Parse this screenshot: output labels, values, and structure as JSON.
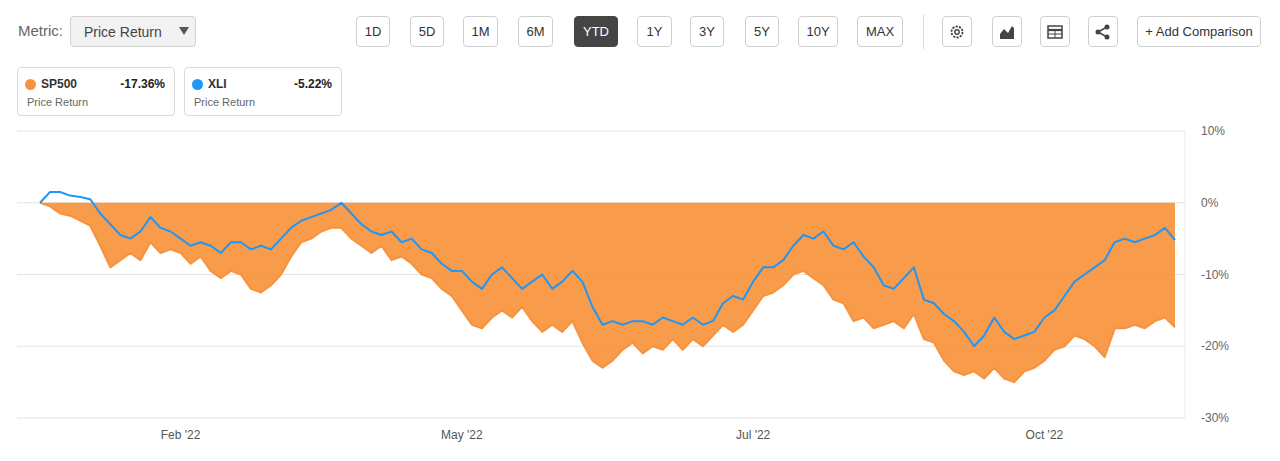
{
  "chart_data": {
    "type": "line",
    "toolbar": {
      "metric_label": "Metric:",
      "metric": "Price Return",
      "ranges": [
        "1D",
        "5D",
        "1M",
        "6M",
        "YTD",
        "1Y",
        "3Y",
        "5Y",
        "10Y",
        "MAX"
      ],
      "active_range": "YTD",
      "add_button": "+ Add Comparison"
    },
    "legend": "top-left",
    "grid": true,
    "categories": [
      null,
      null,
      null,
      null,
      null,
      null,
      null,
      null,
      null,
      null,
      null,
      null,
      null,
      null,
      "Feb '22",
      null,
      null,
      null,
      null,
      null,
      null,
      null,
      null,
      null,
      null,
      null,
      null,
      null,
      null,
      null,
      null,
      null,
      null,
      null,
      null,
      null,
      null,
      null,
      null,
      null,
      null,
      null,
      "May '22",
      null,
      null,
      null,
      null,
      null,
      null,
      null,
      null,
      null,
      null,
      null,
      null,
      null,
      null,
      null,
      null,
      null,
      null,
      null,
      null,
      null,
      null,
      null,
      null,
      null,
      null,
      null,
      null,
      "Jul '22",
      null,
      null,
      null,
      null,
      null,
      null,
      null,
      null,
      null,
      null,
      null,
      null,
      null,
      null,
      null,
      null,
      null,
      null,
      null,
      null,
      null,
      null,
      null,
      null,
      null,
      null,
      null,
      null,
      "Oct '22",
      null,
      null,
      null,
      null,
      null,
      null,
      null,
      null,
      null,
      null,
      null,
      null,
      null
    ],
    "series": [
      {
        "name": "SP500",
        "color": "#f7933c",
        "type": "area",
        "summary": "-17.36%",
        "metric": "Price Return",
        "values": [
          0,
          -0.5,
          -1.5,
          -1.8,
          -2.5,
          -3.2,
          -6,
          -9,
          -8,
          -7,
          -8,
          -5.5,
          -7,
          -6.5,
          -7,
          -8.5,
          -7.5,
          -9.5,
          -10.5,
          -9.5,
          -10,
          -12,
          -12.5,
          -11.5,
          -10,
          -7.5,
          -5.5,
          -5,
          -4,
          -3.5,
          -3.5,
          -5,
          -6,
          -7,
          -6,
          -8,
          -7.5,
          -8.5,
          -10,
          -10.5,
          -12,
          -13,
          -15,
          -17,
          -17.5,
          -16,
          -15,
          -16,
          -14.5,
          -16.5,
          -18,
          -17,
          -18,
          -16.5,
          -19.5,
          -22,
          -23,
          -22,
          -20.5,
          -19.5,
          -21,
          -20,
          -20.5,
          -19,
          -20.5,
          -19,
          -20,
          -18.5,
          -17,
          -18,
          -17,
          -15,
          -13,
          -12.5,
          -11.5,
          -10,
          -9.5,
          -10.5,
          -11.5,
          -13.5,
          -14,
          -16.5,
          -16,
          -17.5,
          -17,
          -16.5,
          -17.5,
          -15.5,
          -19,
          -19.5,
          -22,
          -23.5,
          -24,
          -23.5,
          -24.5,
          -23,
          -24.5,
          -25,
          -23.5,
          -23,
          -22,
          -20.5,
          -20,
          -18.5,
          -19,
          -20,
          -21.5,
          -17.5,
          -17.5,
          -17,
          -17.5,
          -16.5,
          -16,
          -17.36
        ]
      },
      {
        "name": "XLI",
        "color": "#2196f3",
        "type": "line",
        "summary": "-5.22%",
        "metric": "Price Return",
        "values": [
          0,
          1.5,
          1.5,
          1,
          0.8,
          0.5,
          -1.5,
          -3,
          -4.5,
          -5,
          -4,
          -2,
          -3.5,
          -4,
          -5,
          -6,
          -5.5,
          -6,
          -7,
          -5.5,
          -5.5,
          -6.5,
          -6,
          -6.5,
          -5,
          -3.5,
          -2.5,
          -2,
          -1.5,
          -1,
          0,
          -1.5,
          -3,
          -4,
          -4.5,
          -4,
          -5.5,
          -5,
          -6.5,
          -7,
          -8.5,
          -9.5,
          -9.5,
          -11,
          -12,
          -10,
          -9,
          -10.5,
          -12,
          -11,
          -10,
          -12,
          -11,
          -9.5,
          -11,
          -14.5,
          -17,
          -16.5,
          -17,
          -16.5,
          -16.5,
          -17,
          -16,
          -16.5,
          -17,
          -16,
          -17,
          -16.5,
          -14,
          -13,
          -13.5,
          -11,
          -9,
          -9,
          -8,
          -6,
          -4.5,
          -5,
          -4,
          -6,
          -6.5,
          -5.5,
          -7.5,
          -9,
          -11.5,
          -12,
          -10.5,
          -9,
          -13.5,
          -14,
          -15.5,
          -16.5,
          -18,
          -20,
          -18.5,
          -16,
          -18,
          -19,
          -18.5,
          -18,
          -16,
          -15,
          -13,
          -11,
          -10,
          -9,
          -8,
          -5.5,
          -5,
          -5.5,
          -5,
          -4.5,
          -3.5,
          -5.22
        ]
      }
    ],
    "ylim": [
      -30,
      10
    ],
    "yticks": [
      {
        "value": 10,
        "label": "10%"
      },
      {
        "value": 0,
        "label": "0%"
      },
      {
        "value": -10,
        "label": "-10%"
      },
      {
        "value": -20,
        "label": "-20%"
      },
      {
        "value": -30,
        "label": "-30%"
      }
    ]
  }
}
